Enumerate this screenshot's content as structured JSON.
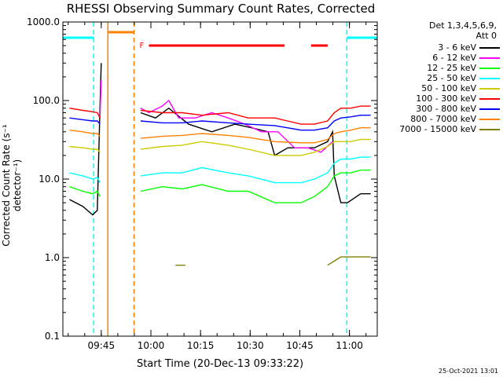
{
  "title": "RHESSI Observing Summary Count Rates, Corrected",
  "xlabel": "Start Time (20-Dec-13 09:33:22)",
  "ylabel": "Corrected Count Rate (s⁻¹ detector⁻¹)",
  "detectors": "Det 1,3,4,5,6,9,",
  "attenuator": "Att 0",
  "timestamp": "25-Oct-2021 13:01",
  "flag_label": "F",
  "colors": {
    "3 - 6 keV": "#000000",
    "6 - 12 keV": "#ff00ff",
    "12 - 25 keV": "#00ff00",
    "25 - 50 keV": "#00ffff",
    "50 - 100 keV": "#cccc00",
    "100 - 300 keV": "#ff0000",
    "300 - 800 keV": "#0000ff",
    "800 - 7000 keV": "#ff8000",
    "7000 - 15000 keV": "#808000",
    "night_bar": "#00ffff",
    "saa_bar": "#ff8000",
    "flare_flag": "#ff0000"
  },
  "chart_data": {
    "type": "line",
    "x_unit": "minutes since 09:33:22",
    "xlim": [
      0,
      95
    ],
    "ylim": [
      0.1,
      1000.0
    ],
    "yscale": "log",
    "y_ticks": [
      "0.1",
      "1.0",
      "10.0",
      "100.0",
      "1000.0"
    ],
    "x_ticks": [
      {
        "label": "09:45",
        "t": 11.6
      },
      {
        "label": "10:00",
        "t": 26.6
      },
      {
        "label": "10:15",
        "t": 41.6
      },
      {
        "label": "10:30",
        "t": 56.6
      },
      {
        "label": "10:45",
        "t": 71.6
      },
      {
        "label": "11:00",
        "t": 86.6
      }
    ],
    "legend_position": "right",
    "series": [
      {
        "name": "3 - 6 keV",
        "points": [
          [
            2,
            5.5
          ],
          [
            6,
            4.5
          ],
          [
            9,
            3.5
          ],
          [
            10.4,
            4
          ],
          [
            11.2,
            80
          ],
          [
            11.6,
            300
          ],
          [
            23.5,
            70
          ],
          [
            28,
            60
          ],
          [
            32,
            80
          ],
          [
            38,
            50
          ],
          [
            45,
            40
          ],
          [
            52,
            50
          ],
          [
            57,
            45
          ],
          [
            62,
            40
          ],
          [
            64,
            20
          ],
          [
            68,
            25
          ],
          [
            72,
            25
          ],
          [
            76,
            25
          ],
          [
            80,
            30
          ],
          [
            81.5,
            40
          ],
          [
            82,
            11
          ],
          [
            84,
            5
          ],
          [
            86,
            5
          ],
          [
            90,
            6.5
          ],
          [
            93,
            6.5
          ]
        ]
      },
      {
        "name": "6 - 12 keV",
        "points": [
          [
            11.2,
            60
          ],
          [
            11.6,
            180
          ],
          [
            23.5,
            80
          ],
          [
            26,
            70
          ],
          [
            30,
            85
          ],
          [
            32,
            100
          ],
          [
            35,
            60
          ],
          [
            40,
            60
          ],
          [
            45,
            70
          ],
          [
            50,
            60
          ],
          [
            55,
            50
          ],
          [
            60,
            40
          ],
          [
            65,
            40
          ],
          [
            70,
            25
          ],
          [
            74,
            25
          ],
          [
            78,
            22
          ],
          [
            81.5,
            30
          ]
        ]
      },
      {
        "name": "12 - 25 keV",
        "points": [
          [
            2,
            8
          ],
          [
            6,
            7
          ],
          [
            9,
            6.5
          ],
          [
            10.4,
            7
          ],
          [
            11.2,
            6
          ],
          [
            23.5,
            7
          ],
          [
            30,
            8
          ],
          [
            36,
            7.5
          ],
          [
            42,
            8.5
          ],
          [
            50,
            7
          ],
          [
            56,
            7
          ],
          [
            64,
            5
          ],
          [
            72,
            5
          ],
          [
            76,
            6
          ],
          [
            80,
            8
          ],
          [
            82,
            11
          ],
          [
            84,
            12
          ],
          [
            87,
            12
          ],
          [
            90,
            13
          ],
          [
            93,
            13
          ]
        ]
      },
      {
        "name": "25 - 50 keV",
        "points": [
          [
            2,
            12
          ],
          [
            6,
            11
          ],
          [
            9,
            10
          ],
          [
            10.4,
            10.5
          ],
          [
            11.2,
            9
          ],
          [
            23.5,
            11
          ],
          [
            30,
            12
          ],
          [
            36,
            12
          ],
          [
            42,
            14
          ],
          [
            50,
            12
          ],
          [
            56,
            11
          ],
          [
            64,
            9
          ],
          [
            72,
            9
          ],
          [
            76,
            10
          ],
          [
            80,
            12
          ],
          [
            82,
            16
          ],
          [
            84,
            18
          ],
          [
            87,
            18
          ],
          [
            90,
            19
          ],
          [
            93,
            19
          ]
        ]
      },
      {
        "name": "50 - 100 keV",
        "points": [
          [
            2,
            26
          ],
          [
            6,
            25
          ],
          [
            9,
            24
          ],
          [
            10.4,
            24
          ],
          [
            11.2,
            22
          ],
          [
            23.5,
            24
          ],
          [
            30,
            26
          ],
          [
            36,
            27
          ],
          [
            42,
            30
          ],
          [
            50,
            27
          ],
          [
            56,
            24
          ],
          [
            64,
            20
          ],
          [
            72,
            20
          ],
          [
            76,
            22
          ],
          [
            80,
            26
          ],
          [
            82,
            30
          ],
          [
            84,
            30
          ],
          [
            87,
            30
          ],
          [
            90,
            32
          ],
          [
            93,
            32
          ]
        ]
      },
      {
        "name": "100 - 300 keV",
        "points": [
          [
            2,
            80
          ],
          [
            6,
            75
          ],
          [
            9,
            72
          ],
          [
            10.4,
            70
          ],
          [
            11.2,
            60
          ],
          [
            23.5,
            75
          ],
          [
            30,
            70
          ],
          [
            36,
            70
          ],
          [
            42,
            65
          ],
          [
            50,
            70
          ],
          [
            56,
            60
          ],
          [
            64,
            60
          ],
          [
            72,
            50
          ],
          [
            76,
            50
          ],
          [
            80,
            55
          ],
          [
            82,
            70
          ],
          [
            84,
            80
          ],
          [
            87,
            80
          ],
          [
            90,
            85
          ],
          [
            93,
            85
          ]
        ]
      },
      {
        "name": "300 - 800 keV",
        "points": [
          [
            2,
            60
          ],
          [
            6,
            57
          ],
          [
            9,
            55
          ],
          [
            10.4,
            55
          ],
          [
            11.2,
            50
          ],
          [
            23.5,
            55
          ],
          [
            30,
            52
          ],
          [
            36,
            52
          ],
          [
            42,
            55
          ],
          [
            50,
            52
          ],
          [
            56,
            50
          ],
          [
            64,
            48
          ],
          [
            72,
            42
          ],
          [
            76,
            42
          ],
          [
            80,
            45
          ],
          [
            82,
            55
          ],
          [
            84,
            60
          ],
          [
            87,
            62
          ],
          [
            90,
            65
          ],
          [
            93,
            65
          ]
        ]
      },
      {
        "name": "800 - 7000 keV",
        "points": [
          [
            2,
            42
          ],
          [
            6,
            40
          ],
          [
            9,
            38
          ],
          [
            10.4,
            38
          ],
          [
            11.2,
            35
          ],
          [
            23.5,
            33
          ],
          [
            30,
            35
          ],
          [
            36,
            36
          ],
          [
            42,
            38
          ],
          [
            50,
            36
          ],
          [
            56,
            34
          ],
          [
            64,
            30
          ],
          [
            72,
            29
          ],
          [
            76,
            29
          ],
          [
            80,
            32
          ],
          [
            82,
            38
          ],
          [
            84,
            40
          ],
          [
            87,
            42
          ],
          [
            90,
            45
          ],
          [
            93,
            45
          ]
        ]
      },
      {
        "name": "7000 - 15000 keV",
        "points": [
          [
            34,
            0.8
          ],
          [
            37,
            0.8
          ],
          [
            80,
            0.8
          ],
          [
            84,
            1.02
          ],
          [
            87,
            1.02
          ],
          [
            90,
            1.02
          ],
          [
            93,
            1.02
          ]
        ]
      }
    ],
    "night_intervals": [
      [
        0,
        9.3
      ],
      [
        85.8,
        95
      ]
    ],
    "saa_intervals": [
      [
        13.6,
        21.5
      ]
    ],
    "flare_flags": [
      [
        26,
        67
      ],
      [
        75,
        80
      ]
    ]
  }
}
